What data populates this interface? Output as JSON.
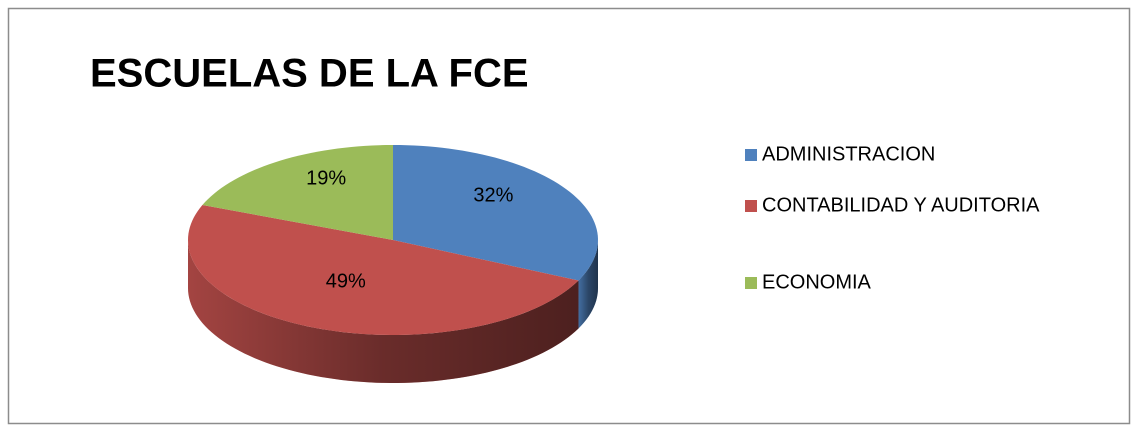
{
  "chart_data": {
    "type": "pie3d",
    "title": "ESCUELAS DE LA FCE",
    "categories": [
      "ADMINISTRACION",
      "CONTABILIDAD Y AUDITORIA",
      "ECONOMIA"
    ],
    "values": [
      32,
      49,
      19
    ],
    "value_labels": [
      "32%",
      "49%",
      "19%"
    ],
    "colors": [
      "#4f81bd",
      "#c0504d",
      "#9bbb59"
    ],
    "legend": "right"
  }
}
